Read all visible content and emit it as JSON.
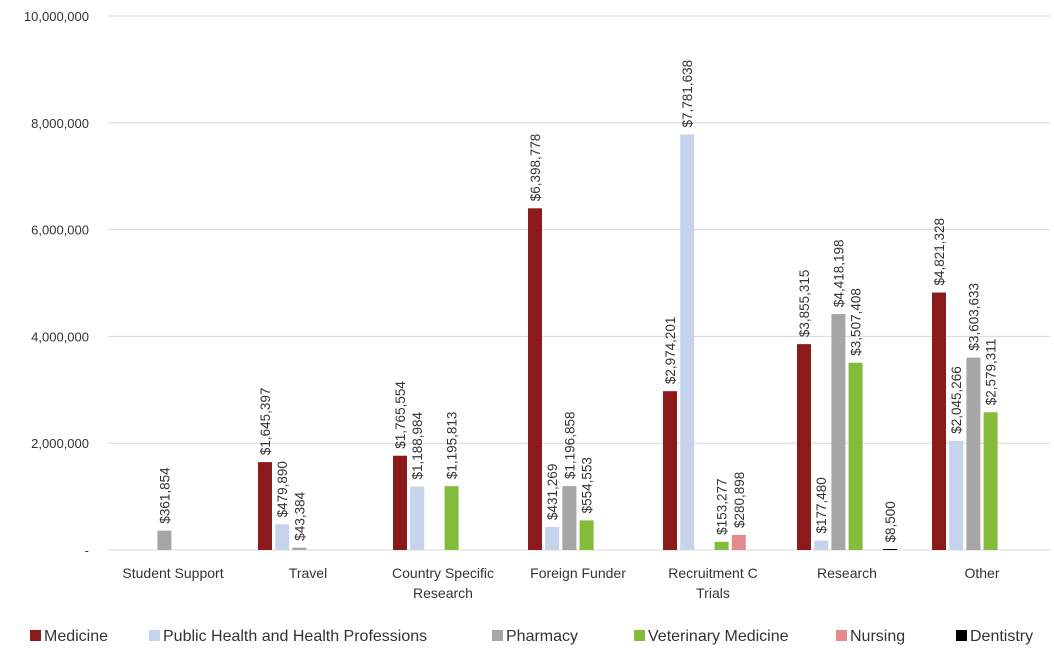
{
  "chart_data": {
    "type": "bar",
    "title": "",
    "xlabel": "",
    "ylabel": "",
    "ylim": [
      0,
      10000000
    ],
    "y_ticks": [
      0,
      2000000,
      4000000,
      6000000,
      8000000,
      10000000
    ],
    "y_tick_labels": [
      "-",
      "2,000,000",
      "4,000,000",
      "6,000,000",
      "8,000,000",
      "10,000,000"
    ],
    "grid": true,
    "legend_position": "bottom",
    "categories": [
      [
        "Student Support"
      ],
      [
        "Travel"
      ],
      [
        "Country Specific",
        "Research"
      ],
      [
        "Foreign Funder"
      ],
      [
        "Recruitment C",
        "Trials"
      ],
      [
        "Research"
      ],
      [
        "Other"
      ]
    ],
    "series": [
      {
        "name": "Medicine",
        "color": "#8b1a1a",
        "values": [
          null,
          1645397,
          1765554,
          6398778,
          2974201,
          3855315,
          4821328
        ],
        "labels": [
          null,
          "$1,645,397",
          "$1,765,554",
          "$6,398,778",
          "$2,974,201",
          "$3,855,315",
          "$4,821,328"
        ]
      },
      {
        "name": "Public Health and Health Professions",
        "color": "#c5d3ec",
        "values": [
          null,
          479890,
          1188984,
          431269,
          7781638,
          177480,
          2045266
        ],
        "labels": [
          null,
          "$479,890",
          "$1,188,984",
          "$431,269",
          "$7,781,638",
          "$177,480",
          "$2,045,266"
        ]
      },
      {
        "name": "Pharmacy",
        "color": "#a6a6a6",
        "values": [
          361854,
          43384,
          null,
          1196858,
          null,
          4418198,
          3603633
        ],
        "labels": [
          "$361,854",
          "$43,384",
          null,
          "$1,196,858",
          null,
          "$4,418,198",
          "$3,603,633"
        ]
      },
      {
        "name": "Veterinary Medicine",
        "color": "#82bc3a",
        "values": [
          null,
          null,
          1195813,
          554553,
          153277,
          3507408,
          2579311
        ],
        "labels": [
          null,
          null,
          "$1,195,813",
          "$554,553",
          "$153,277",
          "$3,507,408",
          "$2,579,311"
        ]
      },
      {
        "name": "Nursing",
        "color": "#e58a8a",
        "values": [
          null,
          null,
          null,
          null,
          280898,
          null,
          null
        ],
        "labels": [
          null,
          null,
          null,
          null,
          "$280,898",
          null,
          null
        ]
      },
      {
        "name": "Dentistry",
        "color": "#000000",
        "values": [
          null,
          null,
          null,
          null,
          null,
          8500,
          null
        ],
        "labels": [
          null,
          null,
          null,
          null,
          null,
          "$8,500",
          null
        ]
      }
    ]
  }
}
